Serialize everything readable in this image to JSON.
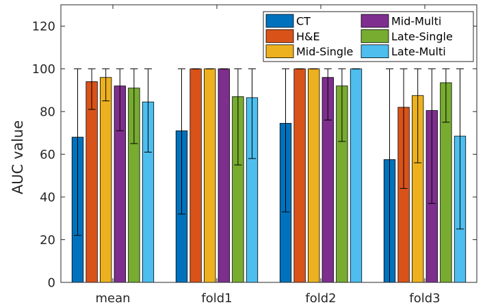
{
  "chart_data": {
    "type": "bar",
    "title": "",
    "xlabel": "",
    "ylabel": "AUC value",
    "ylim": [
      0,
      130
    ],
    "yticks": [
      0,
      20,
      40,
      60,
      80,
      100,
      120
    ],
    "grid": false,
    "legend_position": "top-right",
    "legend_columns": 2,
    "categories": [
      "mean",
      "fold1",
      "fold2",
      "fold3"
    ],
    "series": [
      {
        "name": "CT",
        "color": "#0072BD",
        "values": [
          68,
          71,
          74.5,
          57.5
        ],
        "err_low": [
          22,
          32,
          33,
          0
        ],
        "err_high": [
          100,
          100,
          100,
          100
        ]
      },
      {
        "name": "H&E",
        "color": "#D95319",
        "values": [
          94,
          100,
          100,
          82
        ],
        "err_low": [
          81,
          100,
          100,
          44
        ],
        "err_high": [
          100,
          100,
          100,
          100
        ]
      },
      {
        "name": "Mid-Single",
        "color": "#EDB120",
        "values": [
          96,
          100,
          100,
          87.5
        ],
        "err_low": [
          85,
          100,
          100,
          56
        ],
        "err_high": [
          100,
          100,
          100,
          100
        ]
      },
      {
        "name": "Mid-Multi",
        "color": "#7E2F8E",
        "values": [
          92,
          100,
          96,
          80.5
        ],
        "err_low": [
          71,
          100,
          76,
          37
        ],
        "err_high": [
          100,
          100,
          100,
          100
        ]
      },
      {
        "name": "Late-Single",
        "color": "#77AC30",
        "values": [
          91,
          87,
          92,
          93.5
        ],
        "err_low": [
          65,
          55,
          66,
          75
        ],
        "err_high": [
          100,
          100,
          100,
          100
        ]
      },
      {
        "name": "Late-Multi",
        "color": "#4DBEEE",
        "values": [
          84.5,
          86.5,
          100,
          68.5
        ],
        "err_low": [
          61,
          58,
          100,
          25
        ],
        "err_high": [
          100,
          100,
          100,
          100
        ]
      }
    ]
  }
}
